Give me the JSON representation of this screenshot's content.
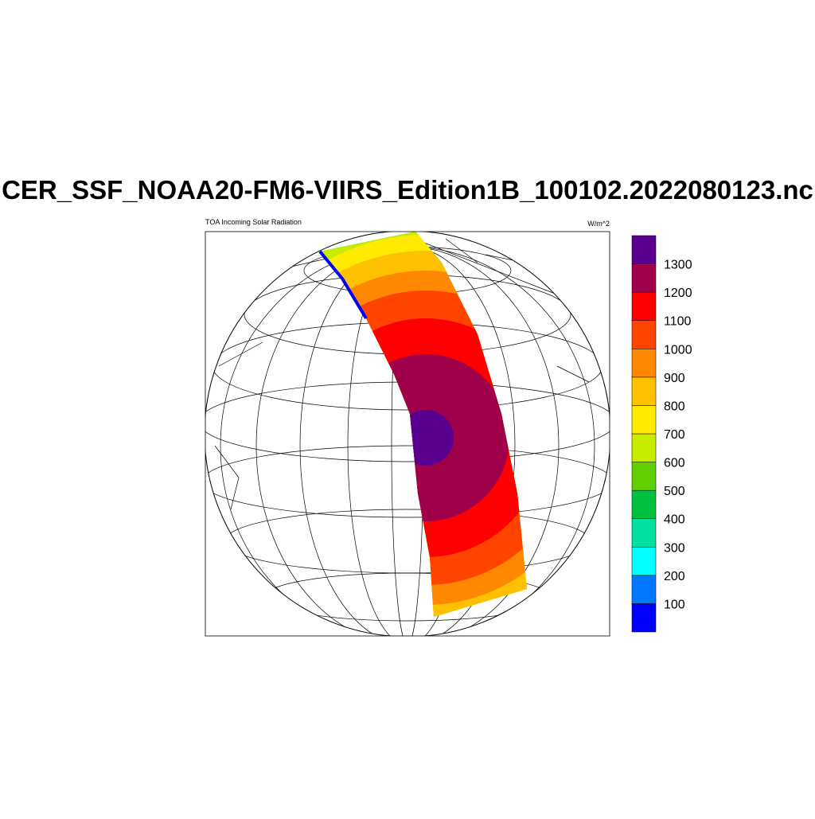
{
  "title": "CER_SSF_NOAA20-FM6-VIIRS_Edition1B_100102.2022080123.nc",
  "left_label": "TOA Incoming Solar Radiation",
  "right_label": "W/m^2",
  "colorbar": {
    "levels": [
      100,
      200,
      300,
      400,
      500,
      600,
      700,
      800,
      900,
      1000,
      1100,
      1200,
      1300
    ],
    "colors": [
      "#0000ff",
      "#0078ff",
      "#00ffff",
      "#00e0a0",
      "#00c040",
      "#60d000",
      "#c8ec00",
      "#ffea00",
      "#ffc000",
      "#ff8800",
      "#ff4400",
      "#ff0000",
      "#a0004a",
      "#5a0090"
    ]
  }
}
